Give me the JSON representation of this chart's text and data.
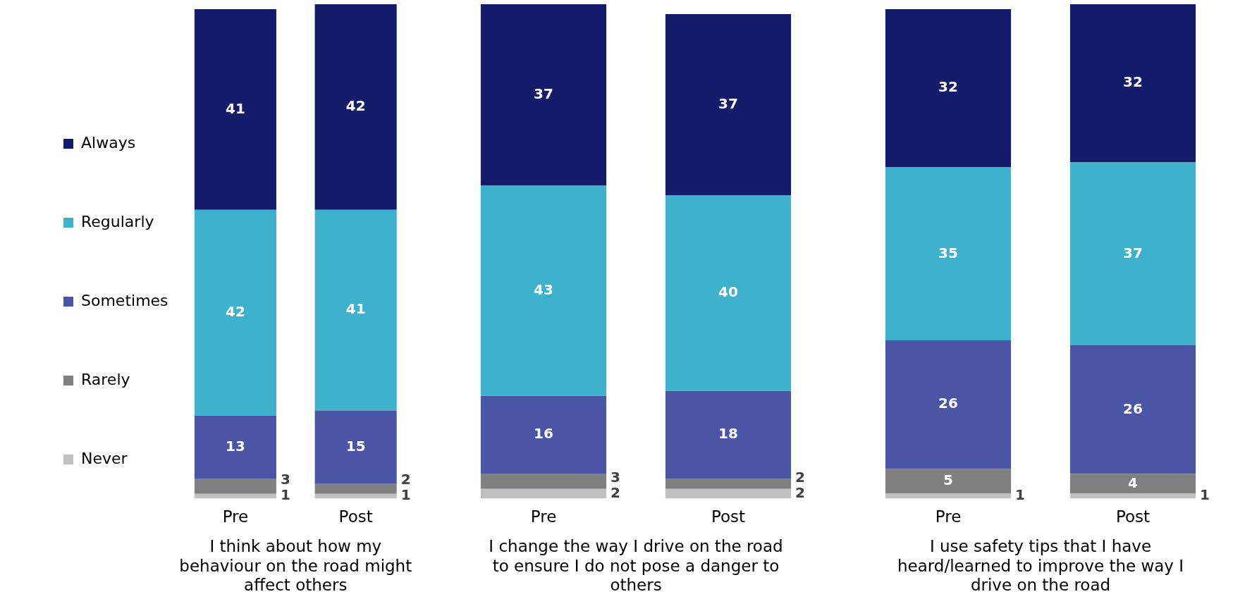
{
  "chart_data": [
    {
      "type": "bar",
      "stacked": true,
      "data_labels": true,
      "tick_labels": "x",
      "legend": "left",
      "xlabel": "I think about how my behaviour on the road might affect others",
      "categories": [
        "Pre",
        "Post"
      ],
      "series": [
        {
          "name": "Never",
          "color": "#c0c0c0",
          "values": [
            1,
            1
          ]
        },
        {
          "name": "Rarely",
          "color": "#808080",
          "values": [
            3,
            2
          ]
        },
        {
          "name": "Sometimes",
          "color": "#4a55a6",
          "values": [
            13,
            15
          ]
        },
        {
          "name": "Regularly",
          "color": "#3eb1cc",
          "values": [
            42,
            41
          ]
        },
        {
          "name": "Always",
          "color": "#141b6a",
          "values": [
            41,
            42
          ]
        }
      ]
    },
    {
      "type": "bar",
      "stacked": true,
      "data_labels": true,
      "tick_labels": "x",
      "xlabel": "I change the way I drive on the road to ensure I do not pose a danger to others",
      "categories": [
        "Pre",
        "Post"
      ],
      "series": [
        {
          "color": "#c0c0c0",
          "values": [
            2,
            2
          ]
        },
        {
          "color": "#808080",
          "values": [
            3,
            2
          ]
        },
        {
          "color": "#4a55a6",
          "values": [
            16,
            18
          ]
        },
        {
          "color": "#3eb1cc",
          "values": [
            43,
            40
          ]
        },
        {
          "color": "#141b6a",
          "values": [
            37,
            37
          ]
        }
      ]
    },
    {
      "type": "bar",
      "stacked": true,
      "data_labels": true,
      "tick_labels": "x",
      "xlabel": "I use safety tips that I have heard/learned to improve the way I drive on the road",
      "categories": [
        "Pre",
        "Post"
      ],
      "series": [
        {
          "color": "#c0c0c0",
          "values": [
            1,
            1
          ]
        },
        {
          "color": "#808080",
          "values": [
            5,
            4
          ]
        },
        {
          "color": "#4a55a6",
          "values": [
            26,
            26
          ]
        },
        {
          "color": "#3eb1cc",
          "values": [
            35,
            37
          ]
        },
        {
          "color": "#141b6a",
          "values": [
            32,
            32
          ]
        }
      ]
    }
  ]
}
